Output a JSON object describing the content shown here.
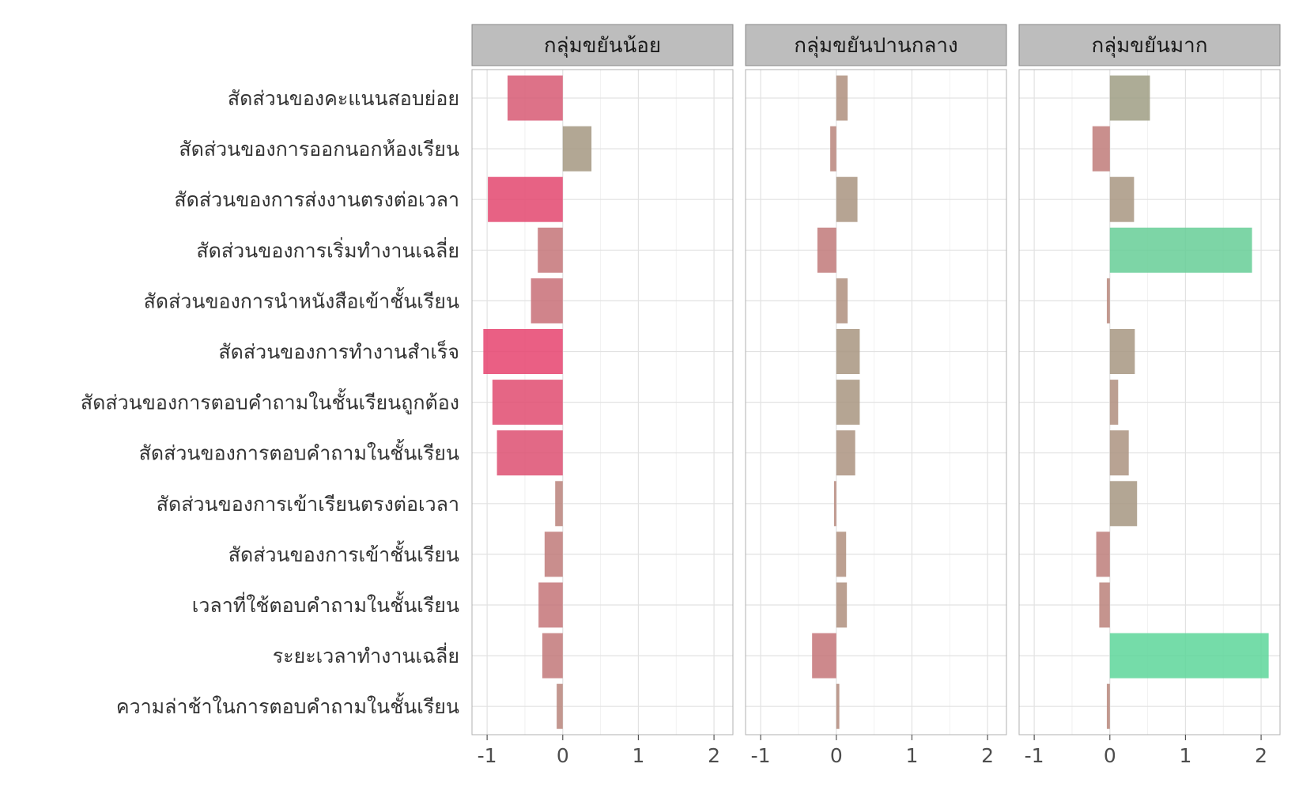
{
  "chart_data": {
    "type": "bar",
    "orientation": "horizontal",
    "facets": [
      "กลุ่มขยันน้อย",
      "กลุ่มขยันปานกลาง",
      "กลุ่มขยันมาก"
    ],
    "categories": [
      "สัดส่วนของคะแนนสอบย่อย",
      "สัดส่วนของการออกนอกห้องเรียน",
      "สัดส่วนของการส่งงานตรงต่อเวลา",
      "สัดส่วนของการเริ่มทำงานเฉลี่ย",
      "สัดส่วนของการนำหนังสือเข้าชั้นเรียน",
      "สัดส่วนของการทำงานสำเร็จ",
      "สัดส่วนของการตอบคำถามในชั้นเรียนถูกต้อง",
      "สัดส่วนของการตอบคำถามในชั้นเรียน",
      "สัดส่วนของการเข้าเรียนตรงต่อเวลา",
      "สัดส่วนของการเข้าชั้นเรียน",
      "เวลาที่ใช้ตอบคำถามในชั้นเรียน",
      "ระยะเวลาทำงานเฉลี่ย",
      "ความล่าช้าในการตอบคำถามในชั้นเรียน"
    ],
    "series": [
      {
        "facet": "กลุ่มขยันน้อย",
        "values": [
          -0.73,
          0.38,
          -0.99,
          -0.33,
          -0.42,
          -1.05,
          -0.93,
          -0.87,
          -0.1,
          -0.24,
          -0.32,
          -0.27,
          -0.08
        ]
      },
      {
        "facet": "กลุ่มขยันปานกลาง",
        "values": [
          0.15,
          -0.08,
          0.28,
          -0.25,
          0.15,
          0.31,
          0.31,
          0.25,
          -0.03,
          0.13,
          0.14,
          -0.32,
          0.04
        ]
      },
      {
        "facet": "กลุ่มขยันมาก",
        "values": [
          0.53,
          -0.23,
          0.32,
          1.88,
          -0.04,
          0.33,
          0.11,
          0.25,
          0.36,
          -0.18,
          -0.14,
          2.1,
          -0.04
        ]
      }
    ],
    "xlim": [
      -1.2,
      2.25
    ],
    "xticks": [
      "-1",
      "0",
      "1",
      "2"
    ],
    "grid": true,
    "color_scale": {
      "low": "#e8406e",
      "mid": "#b58a7c",
      "high": "#5dd69a"
    }
  }
}
